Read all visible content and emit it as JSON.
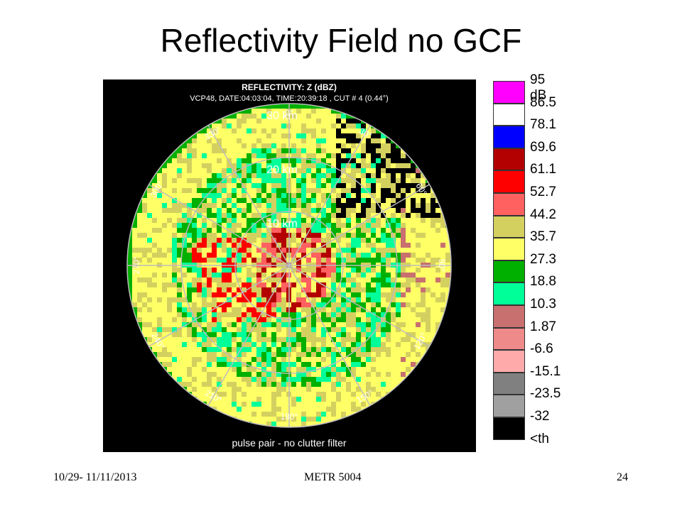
{
  "slide": {
    "title": "Reflectivity Field no GCF",
    "footer_left": "10/29- 11/11/2013",
    "footer_center": "METR 5004",
    "footer_right": "24"
  },
  "radar": {
    "header_line1": "REFLECTIVITY: Z (dBZ)",
    "header_line2": "VCP48, DATE:04:03:04, TIME:20:39:18 , CUT # 4 (0.44°)",
    "footer_note": "pulse pair - no clutter filter",
    "range_labels": [
      "30 km",
      "20 km",
      "10 km"
    ],
    "azimuth_labels": [
      {
        "text": "0°",
        "angle": 0
      },
      {
        "text": "30°",
        "angle": 30
      },
      {
        "text": "60°",
        "angle": 60
      },
      {
        "text": "90°",
        "angle": 90
      },
      {
        "text": "120°",
        "angle": 120
      },
      {
        "text": "150°",
        "angle": 150
      },
      {
        "text": "180°",
        "angle": 180
      },
      {
        "text": "210°",
        "angle": 210
      },
      {
        "text": "240°",
        "angle": 240
      },
      {
        "text": "270°",
        "angle": 270
      },
      {
        "text": "300°",
        "angle": 300
      },
      {
        "text": "330°",
        "angle": 330
      }
    ]
  },
  "legend": {
    "items": [
      {
        "label": "95 dB",
        "color": "#ff00ff"
      },
      {
        "label": "86.5",
        "color": "#ffffff"
      },
      {
        "label": "78.1",
        "color": "#0000ff"
      },
      {
        "label": "69.6",
        "color": "#b30000"
      },
      {
        "label": "61.1",
        "color": "#ff0000"
      },
      {
        "label": "52.7",
        "color": "#ff6060"
      },
      {
        "label": "44.2",
        "color": "#d4d060"
      },
      {
        "label": "35.7",
        "color": "#ffff66"
      },
      {
        "label": "27.3",
        "color": "#00b000"
      },
      {
        "label": "18.8",
        "color": "#00ff99"
      },
      {
        "label": "10.3",
        "color": "#c87070"
      },
      {
        "label": "1.87",
        "color": "#ee8a8a"
      },
      {
        "label": "-6.6",
        "color": "#ffaaaa"
      },
      {
        "label": "-15.1",
        "color": "#808080"
      },
      {
        "label": "-23.5",
        "color": "#a0a0a0"
      },
      {
        "label": "-32",
        "color": "#000000"
      },
      {
        "label": "<th",
        "color": "#000000"
      }
    ]
  }
}
